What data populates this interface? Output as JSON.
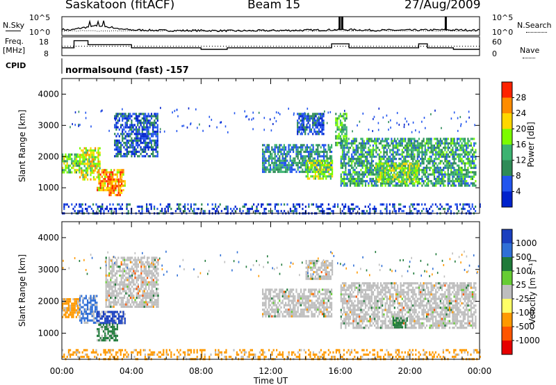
{
  "header": {
    "station": "Saskatoon (fitACF)",
    "beam": "Beam 15",
    "date": "27/Aug/2009"
  },
  "side_labels": {
    "nsky": "N.Sky",
    "freq": "Freq.",
    "freq_unit": "[MHz]",
    "cpid": "CPID",
    "nsearch": "N.Search",
    "nave": "Nave"
  },
  "cpid_text": "normalsound (fast) -157",
  "xaxis": {
    "label": "Time UT",
    "ticks": [
      "00:00",
      "04:00",
      "08:00",
      "12:00",
      "16:00",
      "20:00",
      "00:00"
    ]
  },
  "colors": {
    "power_scale": [
      "#0022cc",
      "#2255ee",
      "#2e8b57",
      "#3cb371",
      "#7cfc00",
      "#ffd700",
      "#ff8c00",
      "#ff2200"
    ],
    "velocity_scale": [
      "#1a3fbf",
      "#2f6fd6",
      "#1f7a3a",
      "#66cc33",
      "#bebebe",
      "#ffff66",
      "#ff9900",
      "#ff5500",
      "#e60000"
    ]
  },
  "chart_data": [
    {
      "type": "line",
      "name": "noise-panel",
      "left_ticks": [
        "10^5",
        "10^0"
      ],
      "right_ticks": [
        "10^5",
        "10^0"
      ],
      "left_label": "N.Sky",
      "right_label": "N.Search",
      "series": [
        {
          "name": "N.Sky",
          "x_hours": [
            0,
            0.5,
            1.0,
            1.5,
            2.0,
            2.5,
            3.0,
            3.5,
            4.0,
            5.0,
            6.0,
            8.0,
            10.0,
            12.0,
            14.0,
            15.5,
            16.0,
            17.0,
            18.0,
            20.0,
            22.0,
            24.0
          ],
          "y_log10": [
            1.5,
            1.2,
            1.8,
            2.2,
            2.6,
            2.4,
            2.0,
            1.5,
            1.3,
            1.2,
            1.1,
            1.1,
            1.0,
            1.1,
            1.2,
            1.3,
            1.4,
            1.3,
            1.2,
            1.2,
            1.3,
            1.2
          ]
        }
      ]
    },
    {
      "type": "line",
      "name": "freq-nave-panel",
      "left_ticks": [
        "18",
        "8"
      ],
      "right_ticks": [
        "60",
        "0"
      ],
      "left_label": "Freq. [MHz]",
      "right_label": "Nave",
      "series": [
        {
          "name": "Freq.",
          "x_hours": [
            0,
            0.7,
            0.7,
            1.5,
            1.5,
            4.0,
            4.0,
            8.0,
            8.0,
            9.5,
            9.5,
            15.5,
            15.5,
            16.5,
            16.5,
            20.5,
            20.5,
            21.0,
            21.0,
            22.5,
            22.5,
            24.0
          ],
          "y": [
            12,
            12,
            16.5,
            16.5,
            14,
            14,
            12,
            12,
            11,
            11,
            12,
            12,
            14.5,
            14.5,
            12,
            12,
            14.5,
            14.5,
            12,
            12,
            11,
            11
          ]
        },
        {
          "name": "Nave",
          "x_hours": [
            0,
            24
          ],
          "y": [
            32,
            32
          ]
        }
      ]
    },
    {
      "type": "heatmap",
      "name": "power-panel",
      "xlabel": "",
      "ylabel": "Slant Range [km]",
      "xlim_hours": [
        0,
        24
      ],
      "ylim_km": [
        180,
        4500
      ],
      "yticks": [
        "1000",
        "2000",
        "3000",
        "4000"
      ],
      "colorbar_label": "Power [dB]",
      "colorbar_ticks": [
        "4",
        "8",
        "12",
        "16",
        "20",
        "24",
        "28"
      ],
      "regions": [
        {
          "t0": 0.0,
          "t1": 1.0,
          "r0": 1500,
          "r1": 2100,
          "level": 16
        },
        {
          "t0": 1.0,
          "t1": 2.2,
          "r0": 1300,
          "r1": 2300,
          "level": 20
        },
        {
          "t0": 2.0,
          "t1": 3.6,
          "r0": 900,
          "r1": 1600,
          "level": 24
        },
        {
          "t0": 2.6,
          "t1": 3.4,
          "r0": 800,
          "r1": 1300,
          "level": 28
        },
        {
          "t0": 3.0,
          "t1": 5.5,
          "r0": 2000,
          "r1": 3400,
          "level": 6
        },
        {
          "t0": 11.5,
          "t1": 15.5,
          "r0": 1500,
          "r1": 2400,
          "level": 10
        },
        {
          "t0": 14.0,
          "t1": 15.5,
          "r0": 1300,
          "r1": 1900,
          "level": 18
        },
        {
          "t0": 13.5,
          "t1": 15.0,
          "r0": 2700,
          "r1": 3400,
          "level": 6
        },
        {
          "t0": 15.7,
          "t1": 16.4,
          "r0": 2400,
          "r1": 3400,
          "level": 14
        },
        {
          "t0": 16.0,
          "t1": 23.8,
          "r0": 1100,
          "r1": 2600,
          "level": 12
        },
        {
          "t0": 18.0,
          "t1": 20.5,
          "r0": 1200,
          "r1": 1800,
          "level": 18
        },
        {
          "t0": 0.0,
          "t1": 24.0,
          "r0": 200,
          "r1": 500,
          "level": 4
        }
      ]
    },
    {
      "type": "heatmap",
      "name": "velocity-panel",
      "xlabel": "Time UT",
      "ylabel": "Slant Range [km]",
      "xlim_hours": [
        0,
        24
      ],
      "ylim_km": [
        180,
        4500
      ],
      "yticks": [
        "1000",
        "2000",
        "3000",
        "4000"
      ],
      "colorbar_label": "Velocity [m s⁻¹]",
      "colorbar_ticks": [
        "1000",
        "500",
        "100",
        "25",
        "-25",
        "-100",
        "-500",
        "-1000"
      ],
      "regions": [
        {
          "t0": 0.0,
          "t1": 1.0,
          "r0": 1500,
          "r1": 2100,
          "level": -100
        },
        {
          "t0": 1.0,
          "t1": 2.0,
          "r0": 1300,
          "r1": 2200,
          "level": 500
        },
        {
          "t0": 2.0,
          "t1": 3.6,
          "r0": 1300,
          "r1": 1700,
          "level": 1000
        },
        {
          "t0": 2.0,
          "t1": 3.2,
          "r0": 800,
          "r1": 1300,
          "level": 100
        },
        {
          "t0": 2.5,
          "t1": 5.5,
          "r0": 1800,
          "r1": 3400,
          "level": 0
        },
        {
          "t0": 11.5,
          "t1": 15.5,
          "r0": 1500,
          "r1": 2400,
          "level": 0
        },
        {
          "t0": 14.0,
          "t1": 15.5,
          "r0": 2700,
          "r1": 3300,
          "level": 0
        },
        {
          "t0": 16.0,
          "t1": 23.8,
          "r0": 1200,
          "r1": 2600,
          "level": 0
        },
        {
          "t0": 19.0,
          "t1": 19.8,
          "r0": 1200,
          "r1": 1500,
          "level": 100
        },
        {
          "t0": 0.0,
          "t1": 24.0,
          "r0": 200,
          "r1": 500,
          "level": -100
        }
      ]
    }
  ]
}
